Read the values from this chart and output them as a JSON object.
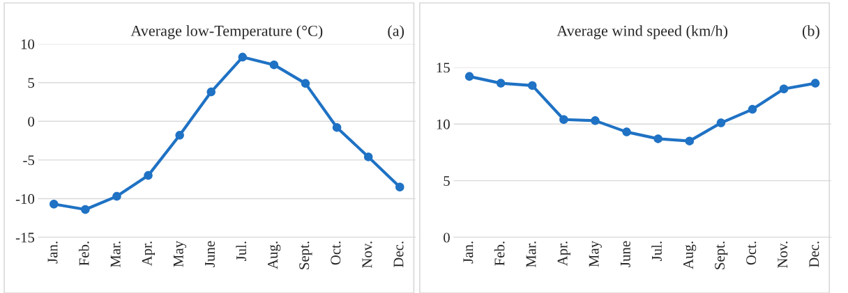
{
  "chart_data": [
    {
      "type": "line",
      "title": "Average low-Temperature (°C)",
      "annotations": [
        "(a)"
      ],
      "categories": [
        "Jan.",
        "Feb.",
        "Mar.",
        "Apr.",
        "May",
        "June",
        "Jul.",
        "Aug.",
        "Sept.",
        "Oct.",
        "Nov.",
        "Dec."
      ],
      "series": [
        {
          "color": "#1f72c4",
          "values": [
            -10.7,
            -11.4,
            -9.7,
            -7.0,
            -1.8,
            3.8,
            8.3,
            7.3,
            4.9,
            -0.8,
            -4.6,
            -8.5
          ]
        }
      ],
      "ylim": [
        -15,
        10
      ],
      "yticks": [
        -15,
        -10,
        -5,
        0,
        5,
        10
      ],
      "grid": "y",
      "marker": "circle",
      "line_style": "solid"
    },
    {
      "type": "line",
      "title": "Average wind speed (km/h)",
      "annotations": [
        "(b)"
      ],
      "categories": [
        "Jan.",
        "Feb.",
        "Mar.",
        "Apr.",
        "May",
        "June",
        "Jul.",
        "Aug.",
        "Sept.",
        "Oct.",
        "Nov.",
        "Dec."
      ],
      "series": [
        {
          "color": "#1f72c4",
          "values": [
            14.2,
            13.6,
            13.4,
            10.4,
            10.3,
            9.3,
            8.7,
            8.5,
            10.1,
            11.3,
            13.1,
            13.6
          ]
        }
      ],
      "ylim": [
        0,
        15
      ],
      "yticks": [
        0,
        5,
        10,
        15
      ],
      "grid": "y",
      "marker": "circle",
      "line_style": "solid"
    }
  ]
}
